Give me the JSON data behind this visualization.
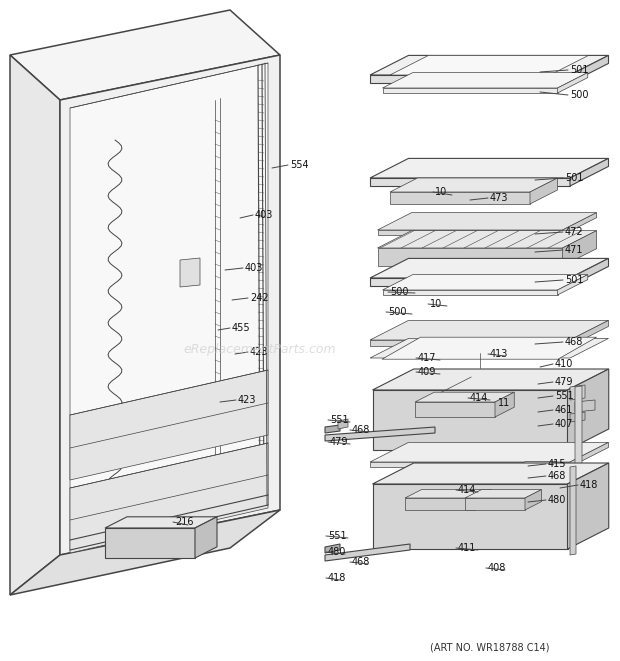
{
  "bg_color": "#ffffff",
  "line_color": "#444444",
  "art_no": "(ART NO. WR18788 C14)",
  "watermark": "eReplacementParts.com",
  "fig_width": 6.2,
  "fig_height": 6.61,
  "dpi": 100
}
